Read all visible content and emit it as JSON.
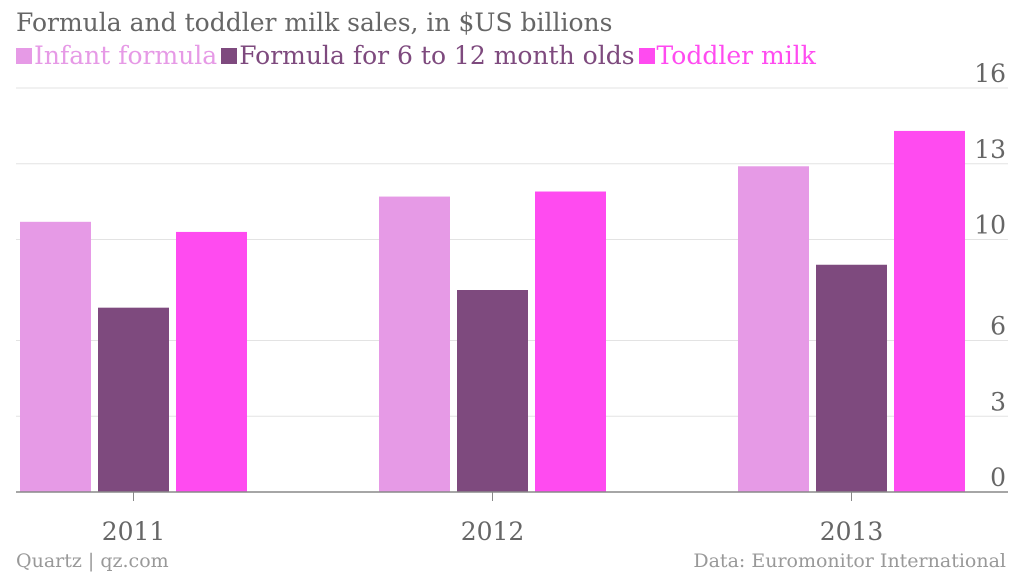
{
  "chart_data": {
    "type": "bar",
    "title": "Formula and toddler milk sales, in $US billions",
    "categories": [
      "2011",
      "2012",
      "2013"
    ],
    "series": [
      {
        "name": "Infant formula",
        "color": "#e69ae6",
        "values": [
          10.7,
          11.7,
          12.9
        ]
      },
      {
        "name": "Formula for 6 to 12 month olds",
        "color": "#7e4a7e",
        "values": [
          7.3,
          8.0,
          9.0
        ]
      },
      {
        "name": "Toddler milk",
        "color": "#ff4bf0",
        "values": [
          10.3,
          11.9,
          14.3
        ]
      }
    ],
    "ylim": [
      0,
      16
    ],
    "yticks": [
      0,
      3,
      6,
      10,
      13,
      16
    ],
    "ytick_labels": [
      "0",
      "3",
      "6",
      "10",
      "13",
      "16"
    ],
    "xlabel": "",
    "ylabel": "",
    "y_axis_side": "right",
    "grid": true,
    "legend_position": "top-left"
  },
  "footer": {
    "source_left": "Quartz | qz.com",
    "source_right": "Data: Euromonitor International"
  }
}
